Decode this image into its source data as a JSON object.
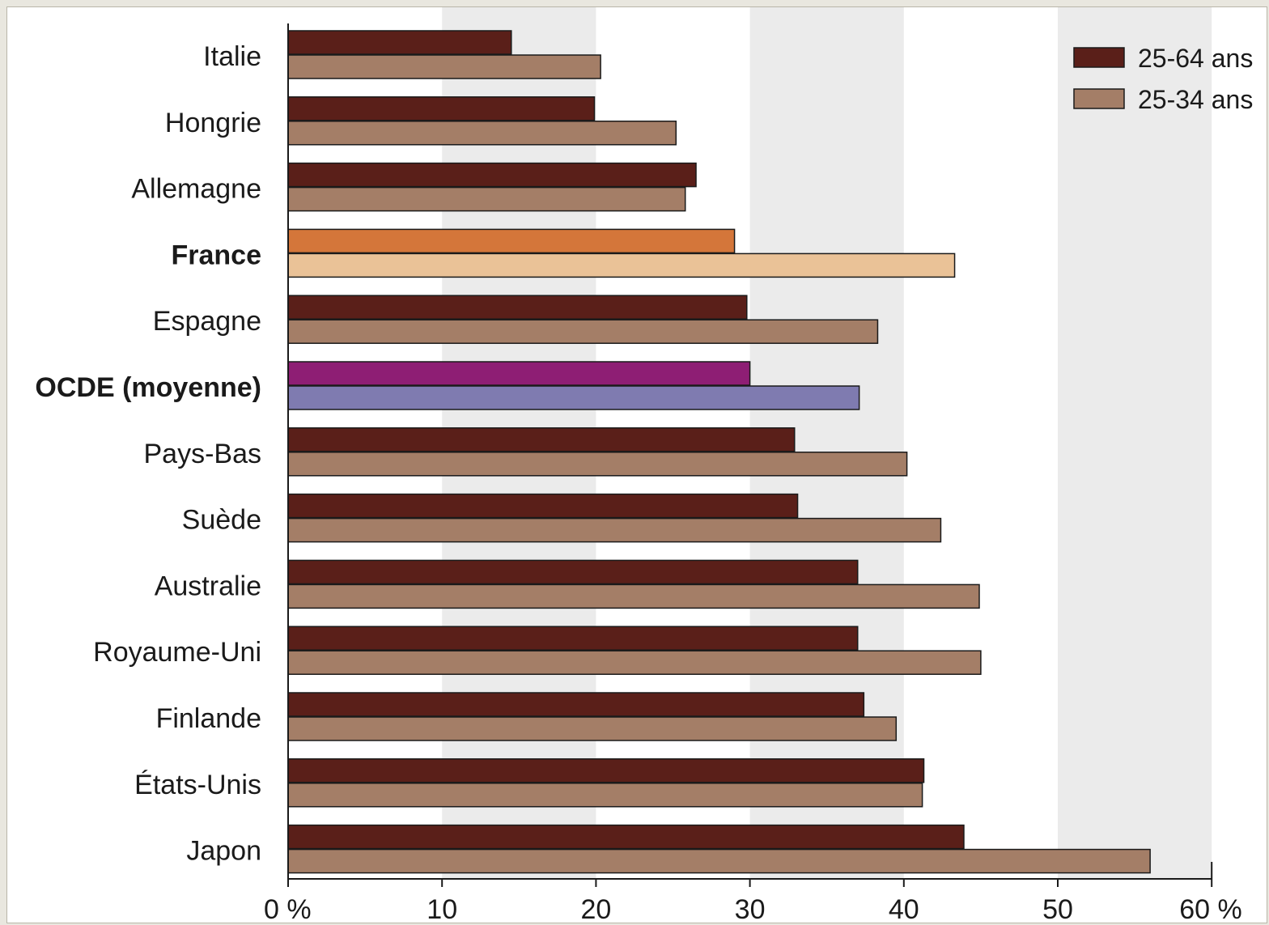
{
  "chart_data": {
    "type": "bar",
    "orientation": "horizontal",
    "categories": [
      "Italie",
      "Hongrie",
      "Allemagne",
      "France",
      "Espagne",
      "OCDE (moyenne)",
      "Pays-Bas",
      "Suède",
      "Australie",
      "Royaume-Uni",
      "Finlande",
      "États-Unis",
      "Japon"
    ],
    "bold_categories": [
      "France",
      "OCDE (moyenne)"
    ],
    "series": [
      {
        "name": "25-64 ans",
        "color": "#5a1f19",
        "values": [
          14.5,
          19.9,
          26.5,
          29,
          29.8,
          30,
          32.9,
          33.1,
          37,
          37,
          37.4,
          41.3,
          43.9
        ]
      },
      {
        "name": "25-34 ans",
        "color": "#a47e67",
        "values": [
          20.3,
          25.2,
          25.8,
          43.3,
          38.3,
          37.1,
          40.2,
          42.4,
          44.9,
          45,
          39.5,
          41.2,
          56
        ]
      }
    ],
    "highlight_colors": {
      "France": [
        "#d4763a",
        "#eac297"
      ],
      "OCDE (moyenne)": [
        "#8e1e74",
        "#7f7bb0"
      ]
    },
    "xlim": [
      0,
      60
    ],
    "xticks": [
      "0 %",
      "10",
      "20",
      "30",
      "40",
      "50",
      "60 %"
    ],
    "xlabel": "",
    "ylabel": "",
    "title": "",
    "legend": {
      "position": "top-right",
      "entries": [
        "25-64 ans",
        "25-34 ans"
      ]
    },
    "grid": "alternating vertical bands"
  }
}
